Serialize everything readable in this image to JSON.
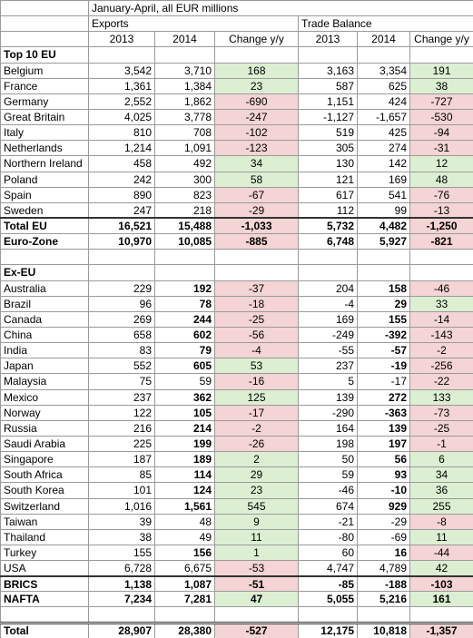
{
  "header": {
    "title": "January-April, all EUR millions",
    "groups": [
      "Exports",
      "Trade Balance"
    ],
    "columns": [
      "2013",
      "2014",
      "Change y/y",
      "2013",
      "2014",
      "Change y/y"
    ]
  },
  "sections": [
    {
      "title": "Top 10 EU",
      "rows": [
        {
          "label": "Belgium",
          "values": [
            "3,542",
            "3,710",
            "168",
            "3,163",
            "3,354",
            "191"
          ]
        },
        {
          "label": "France",
          "values": [
            "1,361",
            "1,384",
            "23",
            "587",
            "625",
            "38"
          ]
        },
        {
          "label": "Germany",
          "values": [
            "2,552",
            "1,862",
            "-690",
            "1,151",
            "424",
            "-727"
          ]
        },
        {
          "label": "Great Britain",
          "values": [
            "4,025",
            "3,778",
            "-247",
            "-1,127",
            "-1,657",
            "-530"
          ]
        },
        {
          "label": "Italy",
          "values": [
            "810",
            "708",
            "-102",
            "519",
            "425",
            "-94"
          ]
        },
        {
          "label": "Netherlands",
          "values": [
            "1,214",
            "1,091",
            "-123",
            "305",
            "274",
            "-31"
          ]
        },
        {
          "label": "Northern Ireland",
          "values": [
            "458",
            "492",
            "34",
            "130",
            "142",
            "12"
          ]
        },
        {
          "label": "Poland",
          "values": [
            "242",
            "300",
            "58",
            "121",
            "169",
            "48"
          ]
        },
        {
          "label": "Spain",
          "values": [
            "890",
            "823",
            "-67",
            "617",
            "541",
            "-76"
          ]
        },
        {
          "label": "Sweden",
          "values": [
            "247",
            "218",
            "-29",
            "112",
            "99",
            "-13"
          ]
        }
      ],
      "summary": [
        {
          "label": "Total EU",
          "values": [
            "16,521",
            "15,488",
            "-1,033",
            "5,732",
            "4,482",
            "-1,250"
          ]
        },
        {
          "label": "Euro-Zone",
          "values": [
            "10,970",
            "10,085",
            "-885",
            "6,748",
            "5,927",
            "-821"
          ]
        }
      ]
    },
    {
      "title": "Ex-EU",
      "rows": [
        {
          "label": "Australia",
          "values": [
            "229",
            "192",
            "-37",
            "204",
            "158",
            "-46"
          ],
          "bold": "2014"
        },
        {
          "label": "Brazil",
          "values": [
            "96",
            "78",
            "-18",
            "-4",
            "29",
            "33"
          ],
          "bold": "2014"
        },
        {
          "label": "Canada",
          "values": [
            "269",
            "244",
            "-25",
            "169",
            "155",
            "-14"
          ],
          "bold": "2014"
        },
        {
          "label": "China",
          "values": [
            "658",
            "602",
            "-56",
            "-249",
            "-392",
            "-143"
          ],
          "bold": "2014"
        },
        {
          "label": "India",
          "values": [
            "83",
            "79",
            "-4",
            "-55",
            "-57",
            "-2"
          ],
          "bold": "2014"
        },
        {
          "label": "Japan",
          "values": [
            "552",
            "605",
            "53",
            "237",
            "-19",
            "-256"
          ],
          "bold": "2014"
        },
        {
          "label": "Malaysia",
          "values": [
            "75",
            "59",
            "-16",
            "5",
            "-17",
            "-22"
          ]
        },
        {
          "label": "Mexico",
          "values": [
            "237",
            "362",
            "125",
            "139",
            "272",
            "133"
          ],
          "bold": "2014"
        },
        {
          "label": "Norway",
          "values": [
            "122",
            "105",
            "-17",
            "-290",
            "-363",
            "-73"
          ],
          "bold": "2014"
        },
        {
          "label": "Russia",
          "values": [
            "216",
            "214",
            "-2",
            "164",
            "139",
            "-25"
          ],
          "bold": "2014"
        },
        {
          "label": "Saudi Arabia",
          "values": [
            "225",
            "199",
            "-26",
            "198",
            "197",
            "-1"
          ],
          "bold": "2014"
        },
        {
          "label": "Singapore",
          "values": [
            "187",
            "189",
            "2",
            "50",
            "56",
            "6"
          ],
          "bold": "2014"
        },
        {
          "label": "South Africa",
          "values": [
            "85",
            "114",
            "29",
            "59",
            "93",
            "34"
          ],
          "bold": "2014"
        },
        {
          "label": "South Korea",
          "values": [
            "101",
            "124",
            "23",
            "-46",
            "-10",
            "36"
          ],
          "bold": "2014"
        },
        {
          "label": "Switzerland",
          "values": [
            "1,016",
            "1,561",
            "545",
            "674",
            "929",
            "255"
          ],
          "bold": "2014"
        },
        {
          "label": "Taiwan",
          "values": [
            "39",
            "48",
            "9",
            "-21",
            "-29",
            "-8"
          ]
        },
        {
          "label": "Thailand",
          "values": [
            "38",
            "49",
            "11",
            "-80",
            "-69",
            "11"
          ]
        },
        {
          "label": "Turkey",
          "values": [
            "155",
            "156",
            "1",
            "60",
            "16",
            "-44"
          ],
          "bold": "2014"
        },
        {
          "label": "USA",
          "values": [
            "6,728",
            "6,675",
            "-53",
            "4,747",
            "4,789",
            "42"
          ]
        }
      ],
      "summary": [
        {
          "label": "BRICS",
          "values": [
            "1,138",
            "1,087",
            "-51",
            "-85",
            "-188",
            "-103"
          ]
        },
        {
          "label": "NAFTA",
          "values": [
            "7,234",
            "7,281",
            "47",
            "5,055",
            "5,216",
            "161"
          ]
        }
      ]
    }
  ],
  "total": {
    "label": "Total",
    "values": [
      "28,907",
      "28,380",
      "-527",
      "12,175",
      "10,818",
      "-1,357"
    ]
  }
}
